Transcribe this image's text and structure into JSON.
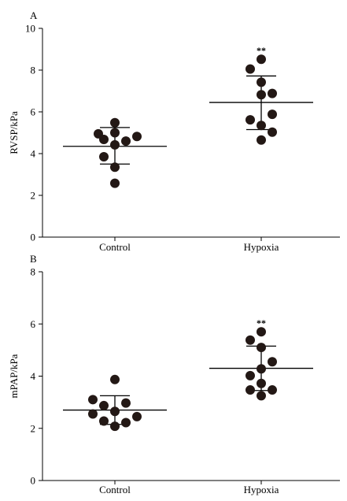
{
  "chart_data": [
    {
      "type": "scatter",
      "panel_label": "A",
      "ylabel": "RVSP/kPa",
      "ylim": [
        0,
        10
      ],
      "yticks": [
        0,
        2,
        4,
        6,
        8,
        10
      ],
      "categories": [
        "Control",
        "Hypoxia"
      ],
      "groups": [
        {
          "category": "Control",
          "points": [
            {
              "jitter": 0,
              "y": 5.48
            },
            {
              "jitter": -1.5,
              "y": 4.95
            },
            {
              "jitter": 0,
              "y": 5.0
            },
            {
              "jitter": -1,
              "y": 4.68
            },
            {
              "jitter": 1,
              "y": 4.6
            },
            {
              "jitter": 2,
              "y": 4.82
            },
            {
              "jitter": 0,
              "y": 4.42
            },
            {
              "jitter": -1,
              "y": 3.85
            },
            {
              "jitter": 0,
              "y": 3.35
            },
            {
              "jitter": 0,
              "y": 2.58
            }
          ],
          "mean": 4.35,
          "sd_upper": 5.25,
          "sd_lower": 3.5
        },
        {
          "category": "Hypoxia",
          "points": [
            {
              "jitter": 0,
              "y": 8.52
            },
            {
              "jitter": -1,
              "y": 8.05
            },
            {
              "jitter": 0,
              "y": 7.42
            },
            {
              "jitter": 0,
              "y": 6.82
            },
            {
              "jitter": 1,
              "y": 6.88
            },
            {
              "jitter": 1,
              "y": 5.88
            },
            {
              "jitter": -1,
              "y": 5.62
            },
            {
              "jitter": 0,
              "y": 5.35
            },
            {
              "jitter": 1,
              "y": 5.03
            },
            {
              "jitter": 0,
              "y": 4.65
            }
          ],
          "mean": 6.45,
          "sd_upper": 7.72,
          "sd_lower": 5.15,
          "significance": "**"
        }
      ]
    },
    {
      "type": "scatter",
      "panel_label": "B",
      "ylabel": "mPAP/kPa",
      "ylim": [
        0,
        8
      ],
      "yticks": [
        0,
        2,
        4,
        6,
        8
      ],
      "categories": [
        "Control",
        "Hypoxia"
      ],
      "groups": [
        {
          "category": "Control",
          "points": [
            {
              "jitter": 0,
              "y": 3.87
            },
            {
              "jitter": -2,
              "y": 3.1
            },
            {
              "jitter": -1,
              "y": 2.87
            },
            {
              "jitter": 1,
              "y": 2.97
            },
            {
              "jitter": 0,
              "y": 2.65
            },
            {
              "jitter": -2,
              "y": 2.55
            },
            {
              "jitter": 2,
              "y": 2.45
            },
            {
              "jitter": -1,
              "y": 2.28
            },
            {
              "jitter": 1,
              "y": 2.22
            },
            {
              "jitter": 0,
              "y": 2.08
            }
          ],
          "mean": 2.7,
          "sd_upper": 3.25,
          "sd_lower": 2.15
        },
        {
          "category": "Hypoxia",
          "points": [
            {
              "jitter": 0,
              "y": 5.7
            },
            {
              "jitter": -1,
              "y": 5.38
            },
            {
              "jitter": 0,
              "y": 5.1
            },
            {
              "jitter": 1,
              "y": 4.55
            },
            {
              "jitter": -1,
              "y": 4.02
            },
            {
              "jitter": 0,
              "y": 4.28
            },
            {
              "jitter": 0,
              "y": 3.72
            },
            {
              "jitter": -1,
              "y": 3.47
            },
            {
              "jitter": 1,
              "y": 3.47
            },
            {
              "jitter": 0,
              "y": 3.25
            }
          ],
          "mean": 4.3,
          "sd_upper": 5.15,
          "sd_lower": 3.45,
          "significance": "**"
        }
      ]
    }
  ]
}
